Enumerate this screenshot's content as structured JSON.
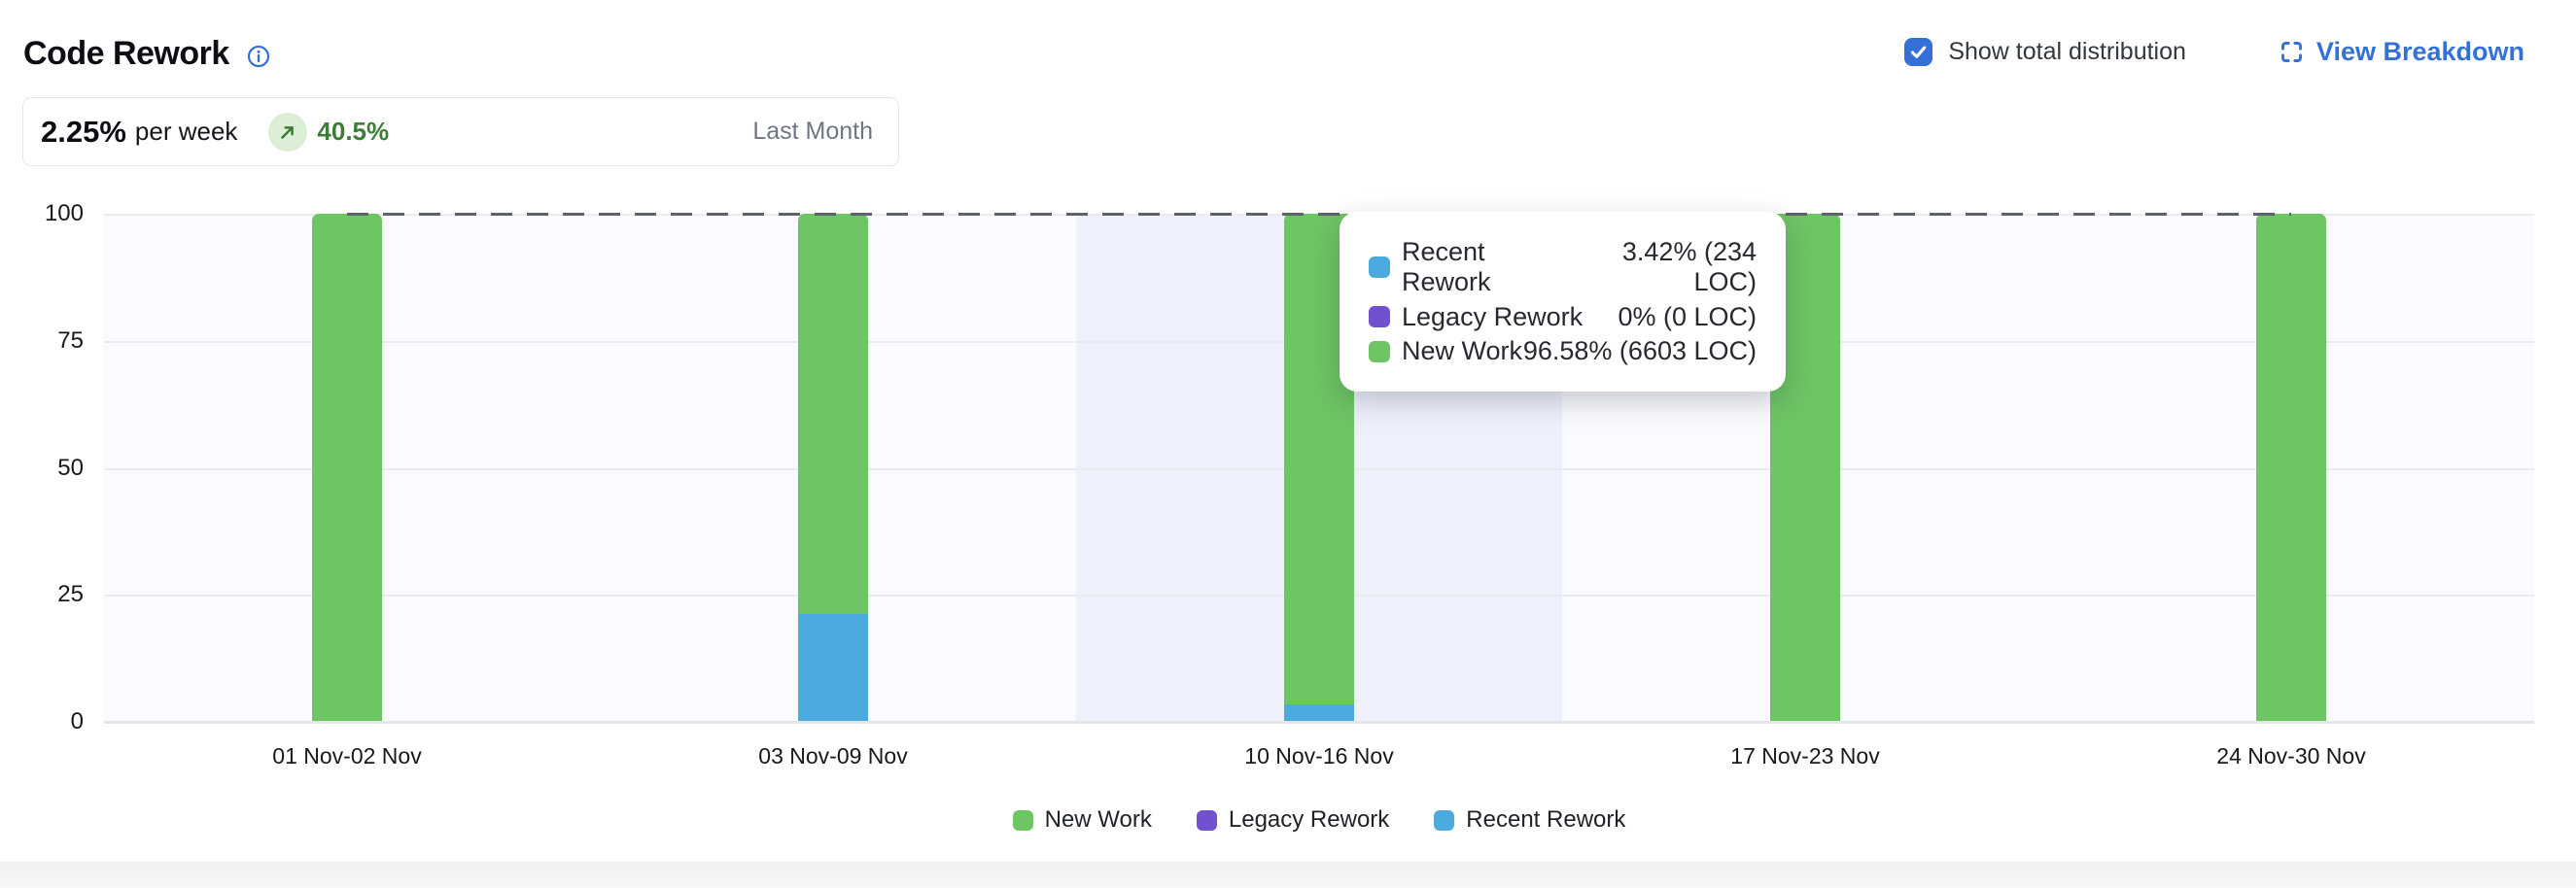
{
  "header": {
    "title": "Code Rework",
    "show_total_distribution": {
      "label": "Show total distribution",
      "checked": true
    },
    "view_breakdown": {
      "label": "View Breakdown"
    }
  },
  "stat_card": {
    "value": "2.25%",
    "unit": "per week",
    "change": "40.5%",
    "trend": "up",
    "period": "Last Month"
  },
  "chart_data": {
    "type": "bar",
    "stacked": true,
    "title": "Code Rework weekly distribution",
    "categories": [
      "01 Nov-02 Nov",
      "03 Nov-09 Nov",
      "10 Nov-16 Nov",
      "17 Nov-23 Nov",
      "24 Nov-30 Nov"
    ],
    "stack_order_bottom_to_top": [
      "Recent Rework",
      "Legacy Rework",
      "New Work"
    ],
    "series": [
      {
        "name": "New Work",
        "color": "#6ec564",
        "values": [
          100,
          78.8,
          96.58,
          100,
          100
        ]
      },
      {
        "name": "Legacy Rework",
        "color": "#7251d0",
        "values": [
          0,
          0,
          0,
          0,
          0
        ]
      },
      {
        "name": "Recent Rework",
        "color": "#4baade",
        "values": [
          0,
          21.2,
          3.42,
          0,
          0
        ]
      }
    ],
    "ylim": [
      0,
      100
    ],
    "yticks": [
      0,
      25,
      50,
      75,
      100
    ],
    "grid": true,
    "total_distribution_line": {
      "value": 100,
      "style": "dashed",
      "color": "#5f6268"
    },
    "highlighted_category": "10 Nov-16 Nov",
    "legend_position": "bottom"
  },
  "tooltip": {
    "category": "10 Nov-16 Nov",
    "rows": [
      {
        "label": "Recent Rework",
        "value": "3.42% (234 LOC)",
        "color": "#4baade"
      },
      {
        "label": "Legacy Rework",
        "value": "0% (0 LOC)",
        "color": "#7251d0"
      },
      {
        "label": "New Work",
        "value": "96.58% (6603 LOC)",
        "color": "#6ec564"
      }
    ]
  },
  "legend": {
    "items": [
      {
        "label": "New Work",
        "color": "#6ec564"
      },
      {
        "label": "Legacy Rework",
        "color": "#7251d0"
      },
      {
        "label": "Recent Rework",
        "color": "#4baade"
      }
    ]
  },
  "icons": {
    "info": "info-icon",
    "checkbox": "checkbox-check-icon",
    "expand": "expand-icon",
    "trend": "trend-up-icon"
  },
  "colors": {
    "accent_blue": "#3570d8",
    "success_green": "#3c7e35",
    "success_pill_bg": "#dcefd6",
    "plot_background": "#fafbfe",
    "highlight_band": "#eef0fb",
    "gridline": "#e9ebef",
    "dashed_line": "#5f6268"
  }
}
